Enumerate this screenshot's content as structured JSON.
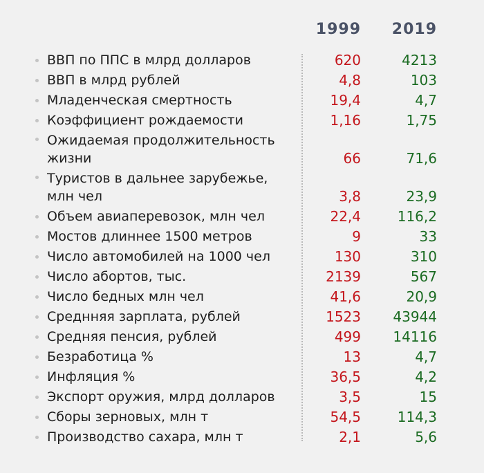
{
  "columns": {
    "year1": "1999",
    "year2": "2019"
  },
  "rows": [
    {
      "label": "ВВП по ППС в млрд долларов",
      "v1999": "620",
      "v2019": "4213"
    },
    {
      "label": "ВВП в млрд рублей",
      "v1999": "4,8",
      "v2019": "103"
    },
    {
      "label": "Младенческая смертность",
      "v1999": "19,4",
      "v2019": "4,7"
    },
    {
      "label": "Коэффициент рождаемости",
      "v1999": "1,16",
      "v2019": "1,75"
    },
    {
      "label": "Ожидаемая продолжительность жизни",
      "v1999": "66",
      "v2019": "71,6"
    },
    {
      "label": "Туристов в дальнее зарубежье, млн чел",
      "v1999": "3,8",
      "v2019": "23,9"
    },
    {
      "label": "Объем авиаперевозок, млн чел",
      "v1999": "22,4",
      "v2019": "116,2"
    },
    {
      "label": "Мостов длиннее 1500 метров",
      "v1999": "9",
      "v2019": "33"
    },
    {
      "label": "Число автомобилей на 1000 чел",
      "v1999": "130",
      "v2019": "310"
    },
    {
      "label": "Число абортов, тыс.",
      "v1999": "2139",
      "v2019": "567"
    },
    {
      "label": "Число бедных млн чел",
      "v1999": "41,6",
      "v2019": "20,9"
    },
    {
      "label": "Среднняя зарплата, рублей",
      "v1999": "1523",
      "v2019": "43944"
    },
    {
      "label": "Средняя пенсия, рублей",
      "v1999": "499",
      "v2019": "14116"
    },
    {
      "label": "Безработица %",
      "v1999": "13",
      "v2019": "4,7"
    },
    {
      "label": "Инфляция %",
      "v1999": "36,5",
      "v2019": "4,2"
    },
    {
      "label": "Экспорт оружия, млрд долларов",
      "v1999": "3,5",
      "v2019": "15"
    },
    {
      "label": "Сборы зерновых, млн т",
      "v1999": "54,5",
      "v2019": "114,3"
    },
    {
      "label": "Производство сахара, млн т",
      "v1999": "2,1",
      "v2019": "5,6"
    }
  ]
}
